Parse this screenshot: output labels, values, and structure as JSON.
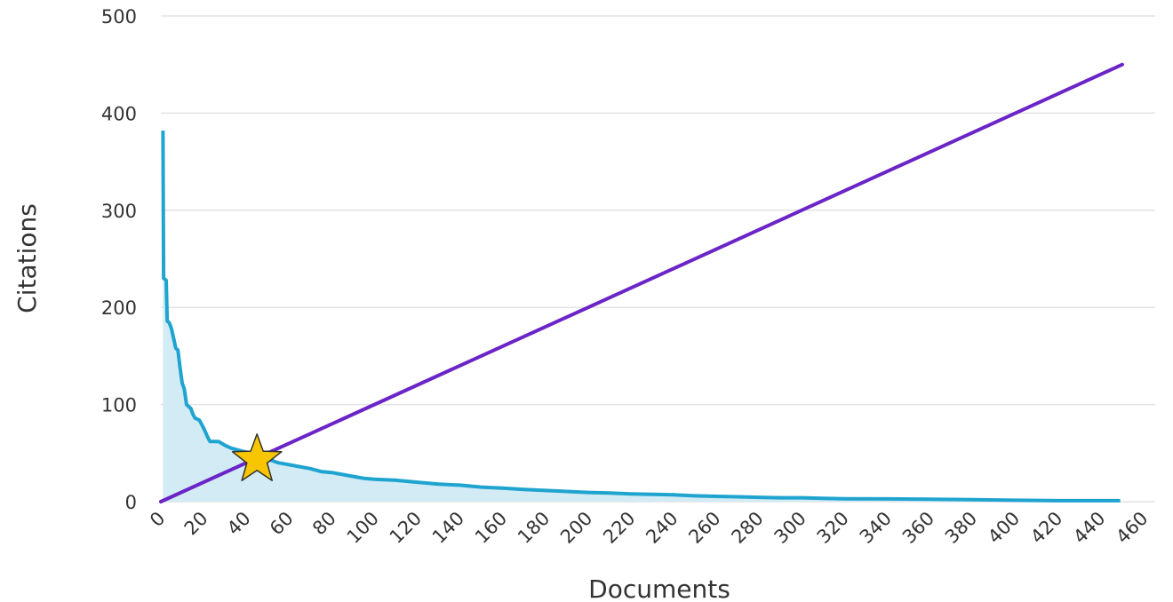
{
  "chart_data": {
    "type": "line",
    "title": "",
    "xlabel": "Documents",
    "ylabel": "Citations",
    "xlim": [
      0,
      460
    ],
    "ylim": [
      0,
      500
    ],
    "x_ticks": [
      0,
      20,
      40,
      60,
      80,
      100,
      120,
      140,
      160,
      180,
      200,
      220,
      240,
      260,
      280,
      300,
      320,
      340,
      360,
      380,
      400,
      420,
      440,
      460
    ],
    "y_ticks": [
      0,
      100,
      200,
      300,
      400,
      500
    ],
    "grid": "horizontal",
    "legend": "none",
    "series": [
      {
        "kind": "area-line",
        "line_color": "#1fa4d0",
        "fill_color": "#d2ebf5",
        "points": [
          [
            1,
            382
          ],
          [
            1.3,
            230
          ],
          [
            2.5,
            228
          ],
          [
            3,
            186
          ],
          [
            4,
            184
          ],
          [
            5,
            178
          ],
          [
            6,
            168
          ],
          [
            7,
            158
          ],
          [
            8,
            156
          ],
          [
            9,
            138
          ],
          [
            10,
            122
          ],
          [
            11,
            116
          ],
          [
            12,
            100
          ],
          [
            14,
            96
          ],
          [
            15,
            90
          ],
          [
            16,
            86
          ],
          [
            18,
            84
          ],
          [
            20,
            76
          ],
          [
            22,
            66
          ],
          [
            23,
            62
          ],
          [
            27,
            62
          ],
          [
            30,
            58
          ],
          [
            33,
            55
          ],
          [
            38,
            52
          ],
          [
            42,
            50
          ],
          [
            46,
            48
          ],
          [
            50,
            44
          ],
          [
            55,
            40
          ],
          [
            60,
            38
          ],
          [
            65,
            36
          ],
          [
            70,
            34
          ],
          [
            75,
            31
          ],
          [
            80,
            30
          ],
          [
            85,
            28
          ],
          [
            90,
            26
          ],
          [
            95,
            24
          ],
          [
            100,
            23
          ],
          [
            110,
            22
          ],
          [
            120,
            20
          ],
          [
            130,
            18
          ],
          [
            140,
            17
          ],
          [
            150,
            15
          ],
          [
            160,
            14
          ],
          [
            170,
            12.5
          ],
          [
            180,
            11.5
          ],
          [
            190,
            10.5
          ],
          [
            200,
            9.5
          ],
          [
            210,
            9
          ],
          [
            220,
            8
          ],
          [
            230,
            7.5
          ],
          [
            240,
            7
          ],
          [
            250,
            6
          ],
          [
            260,
            5.5
          ],
          [
            270,
            5
          ],
          [
            280,
            4.5
          ],
          [
            290,
            4
          ],
          [
            300,
            4
          ],
          [
            310,
            3.5
          ],
          [
            320,
            3
          ],
          [
            340,
            2.8
          ],
          [
            360,
            2.5
          ],
          [
            380,
            2
          ],
          [
            400,
            1.5
          ],
          [
            420,
            1
          ],
          [
            440,
            1
          ],
          [
            449,
            1
          ]
        ]
      },
      {
        "kind": "line",
        "line_color": "#6a24c7",
        "points": [
          [
            0,
            0
          ],
          [
            450,
            450
          ]
        ]
      }
    ],
    "marker": {
      "kind": "star",
      "x": 45,
      "y": 45,
      "color": "#f7c600",
      "stroke": "#333333"
    }
  }
}
